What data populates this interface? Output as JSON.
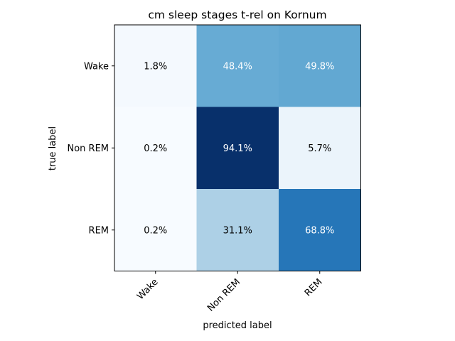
{
  "chart_data": {
    "type": "heatmap",
    "title": "cm sleep stages t-rel on Kornum",
    "xlabel": "predicted label",
    "ylabel": "true label",
    "x_categories": [
      "Wake",
      "Non REM",
      "REM"
    ],
    "y_categories": [
      "Wake",
      "Non REM",
      "REM"
    ],
    "values": [
      [
        1.8,
        48.4,
        49.8
      ],
      [
        0.2,
        94.1,
        5.7
      ],
      [
        0.2,
        31.1,
        68.8
      ]
    ],
    "cell_labels": [
      [
        "1.8%",
        "48.4%",
        "49.8%"
      ],
      [
        "0.2%",
        "94.1%",
        "5.7%"
      ],
      [
        "0.2%",
        "31.1%",
        "68.8%"
      ]
    ],
    "colormap": "Blues",
    "grid": false,
    "legend": "none"
  }
}
